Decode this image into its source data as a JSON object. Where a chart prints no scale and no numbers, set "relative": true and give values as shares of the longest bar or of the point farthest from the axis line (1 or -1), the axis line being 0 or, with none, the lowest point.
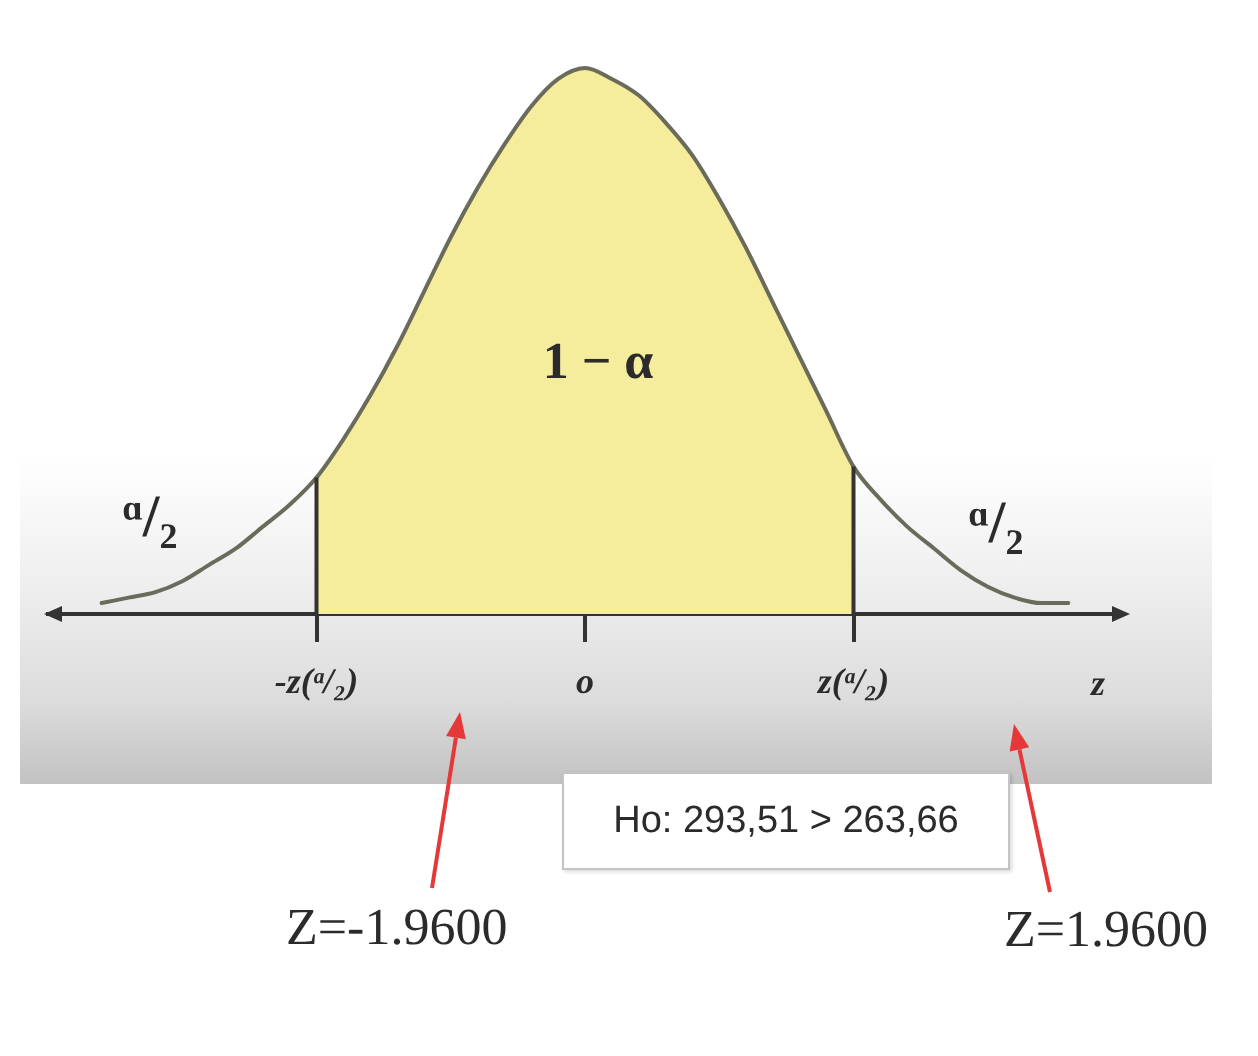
{
  "chart_data": {
    "type": "line",
    "relative": true,
    "categories": [
      null,
      null,
      null,
      null,
      null,
      null,
      null,
      null,
      null,
      null,
      "-z(ᵅ/₂)",
      null,
      null,
      null,
      null,
      null,
      null,
      null,
      null,
      null,
      "o",
      null,
      null,
      null,
      null,
      null,
      null,
      null,
      null,
      null,
      "z(ᵅ/₂)",
      null,
      null,
      null,
      null,
      null,
      null,
      null,
      null,
      null,
      null
    ],
    "xlabel": "z",
    "series": [
      {
        "type": "area",
        "color": "#f5ec9c",
        "values": [
          null,
          null,
          null,
          null,
          null,
          null,
          null,
          null,
          null,
          null,
          0.25,
          0.32,
          0.4,
          0.49,
          0.59,
          0.69,
          0.78,
          0.86,
          0.93,
          0.98,
          1,
          0.98,
          0.95,
          0.9,
          0.84,
          0.76,
          0.67,
          0.57,
          0.47,
          0.37,
          0.27,
          null,
          null,
          null,
          null,
          null,
          null,
          null,
          null,
          null,
          null
        ]
      },
      {
        "color": "#6b6b5b",
        "values": [
          null,
          null,
          0.02,
          0.03,
          0.04,
          0.06,
          0.09,
          0.12,
          0.16,
          0.2,
          0.25,
          0.32,
          0.4,
          0.49,
          0.59,
          0.69,
          0.78,
          0.86,
          0.93,
          0.98,
          1,
          0.98,
          0.95,
          0.9,
          0.84,
          0.76,
          0.67,
          0.57,
          0.47,
          0.37,
          0.27,
          0.21,
          0.16,
          0.12,
          0.08,
          0.05,
          0.03,
          0.02,
          0.02,
          null,
          null
        ]
      }
    ],
    "ref_lines": [
      {
        "axis": "x",
        "value": "-z(ᵅ/₂)",
        "color": "#333333"
      },
      {
        "axis": "x",
        "value": "z(ᵅ/₂)",
        "color": "#333333"
      }
    ],
    "annotations": [
      "1 − α",
      "ᵅ/₂",
      "ᵅ/₂",
      "Z=-1.9600",
      "Z=1.9600",
      "Ho: 293,51 > 263,66"
    ]
  }
}
